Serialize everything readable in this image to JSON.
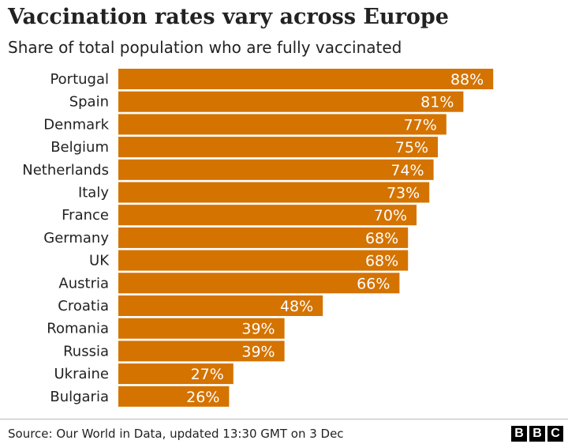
{
  "header": {
    "title": "Vaccination rates vary across Europe",
    "subtitle": "Share of total population who are fully vaccinated"
  },
  "footer": {
    "source": "Source: Our World in Data, updated 13:30 GMT on 3 Dec",
    "logo_letters": [
      "B",
      "B",
      "C"
    ]
  },
  "colors": {
    "bar": "#d47300",
    "bar_label": "#ffffff",
    "text": "#222222"
  },
  "chart_data": {
    "type": "bar",
    "orientation": "horizontal",
    "title": "Vaccination rates vary across Europe",
    "subtitle": "Share of total population who are fully vaccinated",
    "categories": [
      "Portugal",
      "Spain",
      "Denmark",
      "Belgium",
      "Netherlands",
      "Italy",
      "France",
      "Germany",
      "UK",
      "Austria",
      "Croatia",
      "Romania",
      "Russia",
      "Ukraine",
      "Bulgaria"
    ],
    "values": [
      88,
      81,
      77,
      75,
      74,
      73,
      70,
      68,
      68,
      66,
      48,
      39,
      39,
      27,
      26
    ],
    "value_labels": [
      "88%",
      "81%",
      "77%",
      "75%",
      "74%",
      "73%",
      "70%",
      "68%",
      "68%",
      "66%",
      "48%",
      "39%",
      "39%",
      "27%",
      "26%"
    ],
    "unit": "%",
    "xlim": [
      0,
      100
    ],
    "grid": false,
    "legend": "none"
  }
}
